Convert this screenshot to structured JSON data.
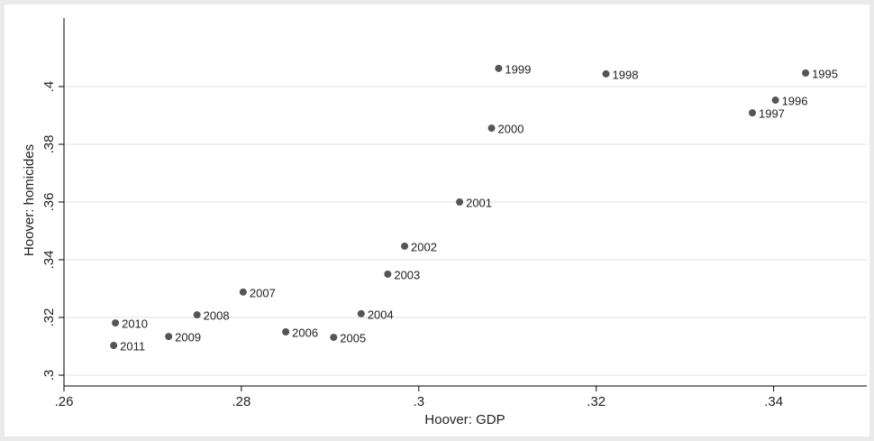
{
  "chart_data": {
    "type": "scatter",
    "x_label": "Hoover: GDP",
    "y_label": "Hoover: homicides",
    "color": "#555555",
    "xlim": [
      0.26,
      0.3505
    ],
    "ylim": [
      0.29625,
      0.42375
    ],
    "xticks": [
      {
        "value": 0.26,
        "label": ".26"
      },
      {
        "value": 0.28,
        "label": ".28"
      },
      {
        "value": 0.3,
        "label": ".3"
      },
      {
        "value": 0.32,
        "label": ".32"
      },
      {
        "value": 0.34,
        "label": ".34"
      }
    ],
    "yticks": [
      {
        "value": 0.3,
        "label": ".3"
      },
      {
        "value": 0.32,
        "label": ".32"
      },
      {
        "value": 0.34,
        "label": ".34"
      },
      {
        "value": 0.36,
        "label": ".36"
      },
      {
        "value": 0.38,
        "label": ".38"
      },
      {
        "value": 0.4,
        "label": ".4"
      }
    ],
    "grid": true,
    "point_labels": [
      "1995",
      "1996",
      "1997",
      "1998",
      "1999",
      "2000",
      "2001",
      "2002",
      "2003",
      "2004",
      "2005",
      "2006",
      "2007",
      "2008",
      "2009",
      "2010",
      "2011"
    ],
    "x": [
      0.3436,
      0.3402,
      0.3376,
      0.3211,
      0.309,
      0.3082,
      0.3046,
      0.2984,
      0.2965,
      0.2935,
      0.2904,
      0.285,
      0.2802,
      0.275,
      0.2718,
      0.2658,
      0.2656
    ],
    "y": [
      0.4047,
      0.3953,
      0.3909,
      0.4044,
      0.4063,
      0.3856,
      0.36,
      0.3447,
      0.335,
      0.3213,
      0.3131,
      0.315,
      0.3288,
      0.3209,
      0.3134,
      0.3181,
      0.3103
    ]
  }
}
